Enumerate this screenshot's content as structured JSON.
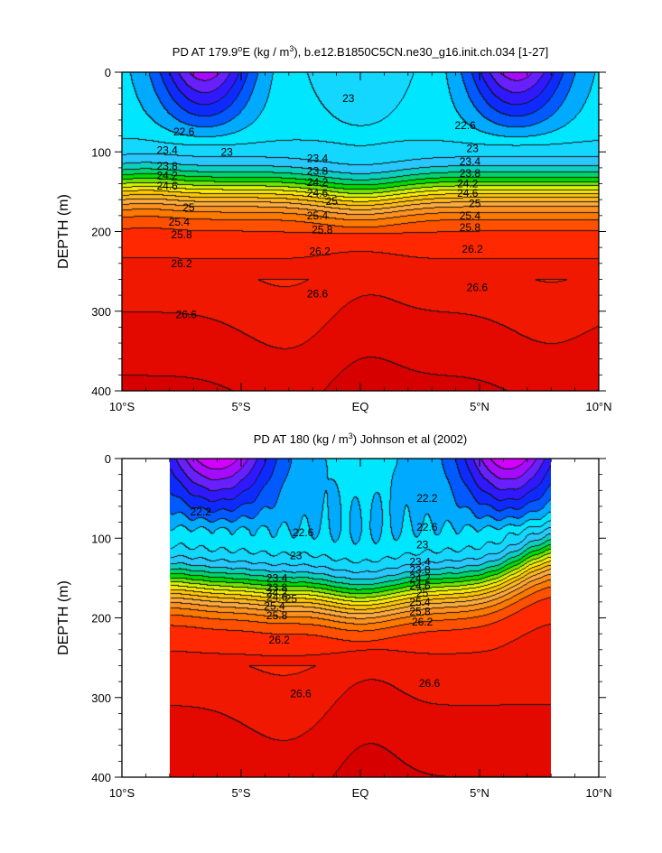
{
  "chart_data": [
    {
      "type": "contour",
      "title_html": "PD AT 179.9<tspan baseline-shift=\"super\" font-size=\"9\">o</tspan>E (kg / m<tspan baseline-shift=\"super\" font-size=\"9\">3</tspan>), b.e12.B1850C5CN.ne30_g16.init.ch.034 [1-27]",
      "ylabel": "DEPTH (m)",
      "xlim": [
        -10,
        10
      ],
      "ylim": [
        400,
        0
      ],
      "x_ticks": [
        {
          "v": -10,
          "label": "10°S"
        },
        {
          "v": -5,
          "label": "5°S"
        },
        {
          "v": 0,
          "label": "EQ"
        },
        {
          "v": 5,
          "label": "5°N"
        },
        {
          "v": 10,
          "label": "10°N"
        }
      ],
      "y_ticks": [
        0,
        100,
        200,
        300,
        400
      ],
      "contour_interval": 0.2,
      "level_range": [
        21.4,
        27.0
      ],
      "data_x_range": [
        -10,
        10
      ],
      "contour_labels": [
        {
          "text": "23",
          "x": -5.6,
          "y": 100
        },
        {
          "text": "23",
          "x": -0.5,
          "y": 33
        },
        {
          "text": "23",
          "x": 4.7,
          "y": 96
        },
        {
          "text": "22.6",
          "x": -7.4,
          "y": 75
        },
        {
          "text": "22.6",
          "x": 4.4,
          "y": 67
        },
        {
          "text": "23.4",
          "x": -8.1,
          "y": 98
        },
        {
          "text": "23.8",
          "x": -8.1,
          "y": 118
        },
        {
          "text": "24.2",
          "x": -8.1,
          "y": 130
        },
        {
          "text": "24.6",
          "x": -8.1,
          "y": 143
        },
        {
          "text": "25",
          "x": -7.2,
          "y": 170
        },
        {
          "text": "25.4",
          "x": -7.6,
          "y": 188
        },
        {
          "text": "25.8",
          "x": -7.5,
          "y": 204
        },
        {
          "text": "26.2",
          "x": -7.5,
          "y": 240
        },
        {
          "text": "26.6",
          "x": -7.3,
          "y": 304
        },
        {
          "text": "23.4",
          "x": -1.8,
          "y": 108
        },
        {
          "text": "23.8",
          "x": -1.8,
          "y": 124
        },
        {
          "text": "24.2",
          "x": -1.8,
          "y": 138
        },
        {
          "text": "24.6",
          "x": -1.8,
          "y": 152
        },
        {
          "text": "25",
          "x": -1.2,
          "y": 162
        },
        {
          "text": "25.4",
          "x": -1.8,
          "y": 180
        },
        {
          "text": "25.8",
          "x": -1.6,
          "y": 198
        },
        {
          "text": "26.2",
          "x": -1.7,
          "y": 225
        },
        {
          "text": "26.6",
          "x": -1.8,
          "y": 278
        },
        {
          "text": "23.4",
          "x": 4.6,
          "y": 112
        },
        {
          "text": "23.8",
          "x": 4.6,
          "y": 127
        },
        {
          "text": "24.2",
          "x": 4.5,
          "y": 140
        },
        {
          "text": "24.6",
          "x": 4.5,
          "y": 152
        },
        {
          "text": "25",
          "x": 4.8,
          "y": 165
        },
        {
          "text": "25.4",
          "x": 4.6,
          "y": 180
        },
        {
          "text": "25.8",
          "x": 4.6,
          "y": 195
        },
        {
          "text": "26.2",
          "x": 4.7,
          "y": 222
        },
        {
          "text": "26.6",
          "x": 4.9,
          "y": 270
        }
      ]
    },
    {
      "type": "contour",
      "title_html": "PD AT 180 (kg / m<tspan baseline-shift=\"super\" font-size=\"9\">3</tspan>) Johnson et al (2002)",
      "ylabel": "DEPTH (m)",
      "xlim": [
        -10,
        10
      ],
      "ylim": [
        400,
        0
      ],
      "x_ticks": [
        {
          "v": -10,
          "label": "10°S"
        },
        {
          "v": -5,
          "label": "5°S"
        },
        {
          "v": 0,
          "label": "EQ"
        },
        {
          "v": 5,
          "label": "5°N"
        },
        {
          "v": 10,
          "label": "10°N"
        }
      ],
      "y_ticks": [
        0,
        100,
        200,
        300,
        400
      ],
      "contour_interval": 0.2,
      "level_range": [
        21.4,
        27.0
      ],
      "data_x_range": [
        -8,
        8
      ],
      "contour_labels": [
        {
          "text": "22.2",
          "x": -6.7,
          "y": 67
        },
        {
          "text": "22.2",
          "x": 2.8,
          "y": 50
        },
        {
          "text": "22.6",
          "x": -2.4,
          "y": 93
        },
        {
          "text": "22.6",
          "x": 2.8,
          "y": 86
        },
        {
          "text": "23",
          "x": -2.7,
          "y": 122
        },
        {
          "text": "23",
          "x": 2.6,
          "y": 108
        },
        {
          "text": "23.4",
          "x": -3.5,
          "y": 150
        },
        {
          "text": "23.8",
          "x": -3.5,
          "y": 162
        },
        {
          "text": "24.2",
          "x": -3.5,
          "y": 168
        },
        {
          "text": "24.6",
          "x": -3.5,
          "y": 174
        },
        {
          "text": "25",
          "x": -2.9,
          "y": 176
        },
        {
          "text": "25.4",
          "x": -3.6,
          "y": 185
        },
        {
          "text": "25.8",
          "x": -3.5,
          "y": 197
        },
        {
          "text": "26.2",
          "x": -3.4,
          "y": 228
        },
        {
          "text": "26.6",
          "x": -2.5,
          "y": 295
        },
        {
          "text": "23.4",
          "x": 2.5,
          "y": 130
        },
        {
          "text": "23.8",
          "x": 2.5,
          "y": 140
        },
        {
          "text": "24.2",
          "x": 2.5,
          "y": 150
        },
        {
          "text": "24.6",
          "x": 2.5,
          "y": 160
        },
        {
          "text": "25",
          "x": 2.6,
          "y": 169
        },
        {
          "text": "25.4",
          "x": 2.5,
          "y": 180
        },
        {
          "text": "25.8",
          "x": 2.5,
          "y": 192
        },
        {
          "text": "26.2",
          "x": 2.6,
          "y": 205
        },
        {
          "text": "26.6",
          "x": 2.9,
          "y": 282
        }
      ]
    }
  ]
}
